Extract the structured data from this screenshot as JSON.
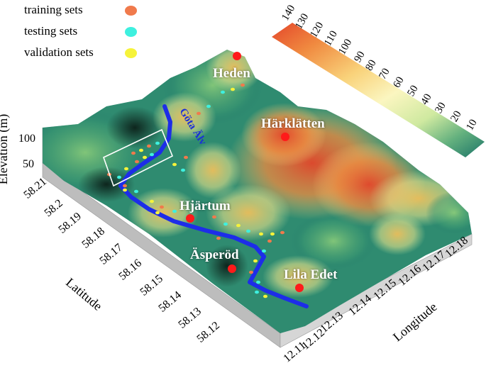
{
  "legend": {
    "items": [
      {
        "label": "training sets",
        "color": "#f07a4c"
      },
      {
        "label": "testing sets",
        "color": "#3ef0df"
      },
      {
        "label": "validation sets",
        "color": "#f6f33a"
      }
    ]
  },
  "colorbar": {
    "ticks": [
      "140",
      "130",
      "120",
      "110",
      "100",
      "90",
      "80",
      "70",
      "60",
      "50",
      "40",
      "30",
      "20",
      "10"
    ],
    "colors": [
      "#e4462a",
      "#f08a40",
      "#f9d27a",
      "#fbf6c0",
      "#cfe9a0",
      "#63b07e",
      "#1b7368"
    ]
  },
  "axes": {
    "elevation": {
      "title": "Elevation (m)",
      "ticks": [
        "100",
        "50"
      ]
    },
    "latitude": {
      "title": "Latitude",
      "ticks": [
        "58.21",
        "58.2",
        "58.19",
        "58.18",
        "58.17",
        "58.16",
        "58.15",
        "58.14",
        "58.13",
        "58.12"
      ]
    },
    "longitude": {
      "title": "Longitude",
      "ticks": [
        "12.11",
        "12.12",
        "12.13",
        "12.14",
        "12.15",
        "12.16",
        "12.17",
        "12.18"
      ]
    }
  },
  "places": [
    {
      "name": "Heden"
    },
    {
      "name": "Härklätten"
    },
    {
      "name": "Hjärtum"
    },
    {
      "name": "Äsperöd"
    },
    {
      "name": "Lila Edet"
    }
  ],
  "river": {
    "name": "Göta Älv",
    "color": "#1d2de8"
  },
  "marker_color": "#ff1a1a"
}
